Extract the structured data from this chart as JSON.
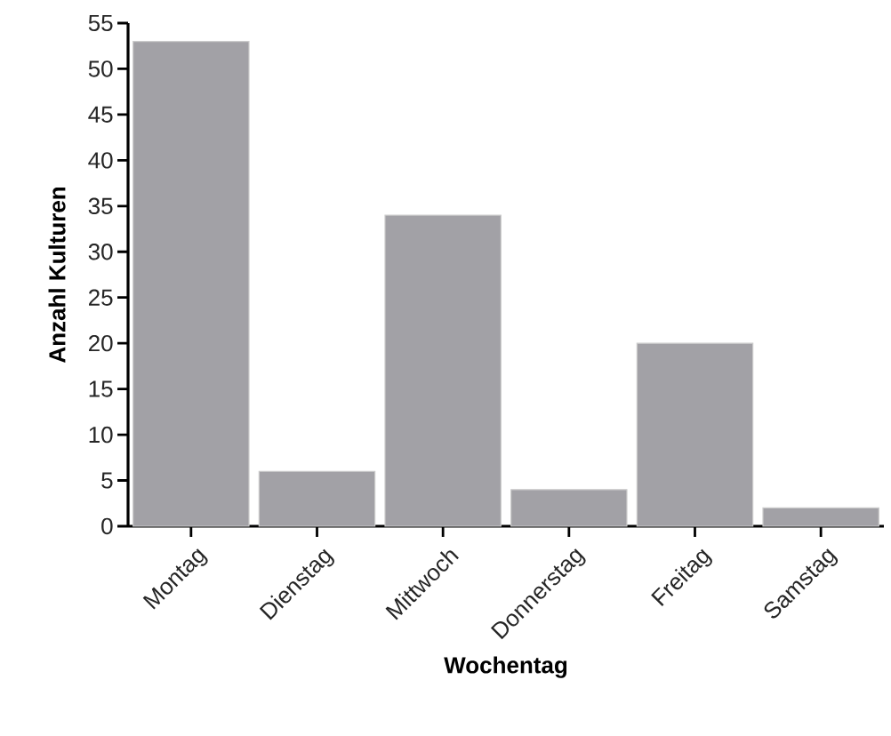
{
  "chart_data": {
    "type": "bar",
    "xlabel": "Wochentag",
    "ylabel": "Anzahl Kulturen",
    "categories": [
      "Montag",
      "Dienstag",
      "Mittwoch",
      "Donnerstag",
      "Freitag",
      "Samstag"
    ],
    "values": [
      53,
      6,
      34,
      4,
      20,
      2
    ],
    "color": "#a2a1a6",
    "ylim": [
      0,
      55
    ],
    "yticks": [
      0,
      5,
      10,
      15,
      20,
      25,
      30,
      35,
      40,
      45,
      50,
      55
    ],
    "grid": false
  }
}
